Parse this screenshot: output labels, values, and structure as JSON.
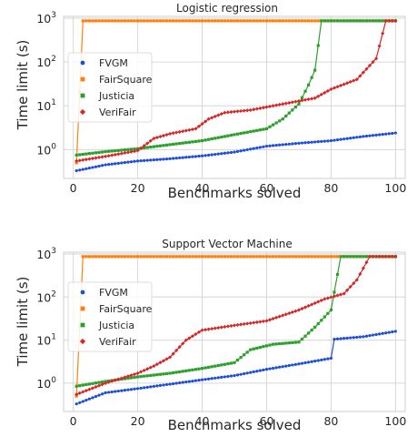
{
  "chart_data": [
    {
      "type": "line",
      "title": "Logistic regression",
      "xlabel": "Benchmarks solved",
      "ylabel": "Time limit (s)",
      "xlim": [
        -3,
        103
      ],
      "ylim": [
        0.22,
        1100
      ],
      "yscale": "log",
      "xticks": [
        0,
        20,
        40,
        60,
        80,
        100
      ],
      "yticks": [
        {
          "value": 1,
          "base": "10",
          "exp": "0"
        },
        {
          "value": 10,
          "base": "10",
          "exp": "1"
        },
        {
          "value": 100,
          "base": "10",
          "exp": "2"
        },
        {
          "value": 1000,
          "base": "10",
          "exp": "3"
        }
      ],
      "grid": true,
      "legend": "center-left",
      "series": [
        {
          "name": "FVGM",
          "color": "#1f4fd8",
          "marker": "circle",
          "points": [
            [
              1,
              0.33
            ],
            [
              10,
              0.45
            ],
            [
              20,
              0.55
            ],
            [
              30,
              0.62
            ],
            [
              40,
              0.72
            ],
            [
              50,
              0.88
            ],
            [
              60,
              1.2
            ],
            [
              70,
              1.4
            ],
            [
              80,
              1.6
            ],
            [
              90,
              2.0
            ],
            [
              100,
              2.4
            ]
          ]
        },
        {
          "name": "FairSquare",
          "color": "#ff7f0e",
          "marker": "square",
          "points": [
            [
              1,
              0.5
            ],
            [
              3,
              870
            ],
            [
              100,
              870
            ]
          ]
        },
        {
          "name": "Justicia",
          "color": "#2ca02c",
          "marker": "square",
          "points": [
            [
              1,
              0.75
            ],
            [
              10,
              0.9
            ],
            [
              20,
              1.05
            ],
            [
              30,
              1.3
            ],
            [
              40,
              1.6
            ],
            [
              50,
              2.2
            ],
            [
              60,
              3.0
            ],
            [
              65,
              5.0
            ],
            [
              70,
              11
            ],
            [
              73,
              30
            ],
            [
              75,
              65
            ],
            [
              77,
              870
            ],
            [
              100,
              870
            ]
          ]
        },
        {
          "name": "VeriFair",
          "color": "#d62728",
          "marker": "diamond",
          "points": [
            [
              1,
              0.55
            ],
            [
              10,
              0.7
            ],
            [
              20,
              0.95
            ],
            [
              25,
              1.8
            ],
            [
              30,
              2.3
            ],
            [
              38,
              3.0
            ],
            [
              42,
              5.0
            ],
            [
              47,
              7.0
            ],
            [
              55,
              8.0
            ],
            [
              65,
              11
            ],
            [
              75,
              15
            ],
            [
              80,
              24
            ],
            [
              88,
              40
            ],
            [
              94,
              120
            ],
            [
              97,
              870
            ],
            [
              100,
              870
            ]
          ]
        }
      ]
    },
    {
      "type": "line",
      "title": "Support Vector Machine",
      "xlabel": "Benchmarks solved",
      "ylabel": "Time limit (s)",
      "xlim": [
        -3,
        103
      ],
      "ylim": [
        0.22,
        1100
      ],
      "yscale": "log",
      "xticks": [
        0,
        20,
        40,
        60,
        80,
        100
      ],
      "yticks": [
        {
          "value": 1,
          "base": "10",
          "exp": "0"
        },
        {
          "value": 10,
          "base": "10",
          "exp": "1"
        },
        {
          "value": 100,
          "base": "10",
          "exp": "2"
        },
        {
          "value": 1000,
          "base": "10",
          "exp": "3"
        }
      ],
      "grid": true,
      "legend": "center-left",
      "series": [
        {
          "name": "FVGM",
          "color": "#1f4fd8",
          "marker": "circle",
          "points": [
            [
              1,
              0.33
            ],
            [
              10,
              0.6
            ],
            [
              20,
              0.75
            ],
            [
              30,
              0.95
            ],
            [
              40,
              1.2
            ],
            [
              50,
              1.5
            ],
            [
              60,
              2.1
            ],
            [
              70,
              2.8
            ],
            [
              80,
              3.8
            ],
            [
              81,
              10.5
            ],
            [
              90,
              12
            ],
            [
              100,
              16
            ]
          ]
        },
        {
          "name": "FairSquare",
          "color": "#ff7f0e",
          "marker": "square",
          "points": [
            [
              1,
              0.5
            ],
            [
              3,
              870
            ],
            [
              100,
              870
            ]
          ]
        },
        {
          "name": "Justicia",
          "color": "#2ca02c",
          "marker": "square",
          "points": [
            [
              1,
              0.85
            ],
            [
              10,
              1.1
            ],
            [
              20,
              1.4
            ],
            [
              30,
              1.7
            ],
            [
              40,
              2.2
            ],
            [
              50,
              3.0
            ],
            [
              55,
              6.0
            ],
            [
              62,
              8.0
            ],
            [
              70,
              9.0
            ],
            [
              75,
              20
            ],
            [
              80,
              50
            ],
            [
              83,
              870
            ],
            [
              100,
              870
            ]
          ]
        },
        {
          "name": "VeriFair",
          "color": "#d62728",
          "marker": "diamond",
          "points": [
            [
              1,
              0.55
            ],
            [
              10,
              1.0
            ],
            [
              20,
              1.7
            ],
            [
              25,
              2.5
            ],
            [
              30,
              4.0
            ],
            [
              35,
              10
            ],
            [
              40,
              17
            ],
            [
              50,
              22
            ],
            [
              60,
              28
            ],
            [
              70,
              50
            ],
            [
              78,
              90
            ],
            [
              84,
              120
            ],
            [
              88,
              250
            ],
            [
              92,
              870
            ],
            [
              100,
              870
            ]
          ]
        }
      ]
    }
  ]
}
